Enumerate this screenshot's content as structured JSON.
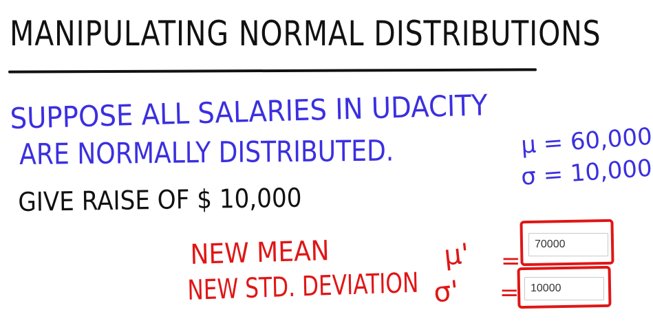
{
  "title": "MANIPULATING NORMAL DISTRIBUTIONS",
  "statement": {
    "line1": "SUPPOSE  ALL  SALARIES  IN  UDACITY",
    "line2": "ARE NORMALLY  DISTRIBUTED.",
    "mu": "μ = 60,000",
    "sigma": "σ = 10,000",
    "raise": "GIVE  RAISE  OF  $ 10,000"
  },
  "questions": {
    "new_mean_label": "NEW  MEAN",
    "new_mean_symbol": "μ'",
    "new_std_label": "NEW  STD. DEVIATION",
    "new_std_symbol": "σ'",
    "equals": "="
  },
  "answers": {
    "new_mean_value": "70000",
    "new_std_value": "10000"
  },
  "colors": {
    "ink": "#111111",
    "blue": "#3b2fe0",
    "red": "#e01616"
  }
}
